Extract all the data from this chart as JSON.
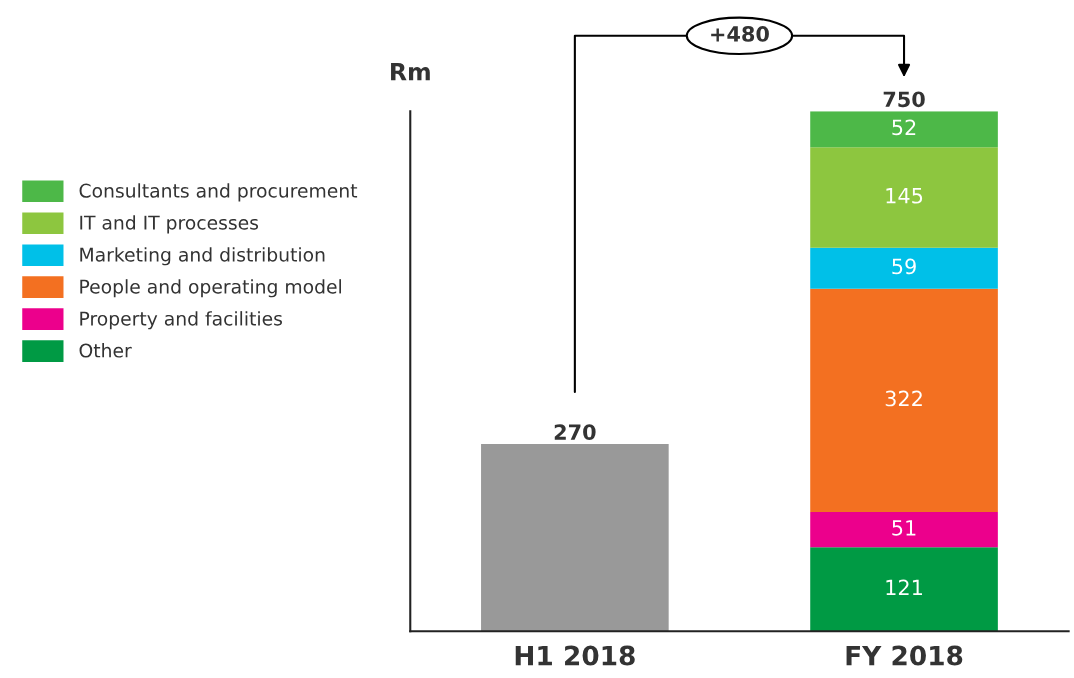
{
  "chart_data": {
    "type": "bar",
    "stacked": true,
    "ylabel": "Rm",
    "categories": [
      "H1 2018",
      "FY 2018"
    ],
    "ylim": [
      0,
      750
    ],
    "legend": "left",
    "grid": false,
    "totals": [
      "270",
      "750"
    ],
    "annotations": [
      "+480"
    ],
    "series": [
      {
        "color": "#999999",
        "values": [
          270,
          null
        ]
      },
      {
        "name": "Other",
        "color": "#009a44",
        "values": [
          null,
          121
        ],
        "value_labels": [
          null,
          "121"
        ]
      },
      {
        "name": "Property and facilities",
        "color": "#ec008c",
        "values": [
          null,
          51
        ],
        "value_labels": [
          null,
          "51"
        ]
      },
      {
        "name": "People and operating model",
        "color": "#f37021",
        "values": [
          null,
          322
        ],
        "value_labels": [
          null,
          "322"
        ]
      },
      {
        "name": "Marketing and distribution",
        "color": "#00c0e8",
        "values": [
          null,
          59
        ],
        "value_labels": [
          null,
          "59"
        ]
      },
      {
        "name": "IT and IT processes",
        "color": "#8dc63f",
        "values": [
          null,
          145
        ],
        "value_labels": [
          null,
          "145"
        ]
      },
      {
        "name": "Consultants and procurement",
        "color": "#4db848",
        "values": [
          null,
          52
        ],
        "value_labels": [
          null,
          "52"
        ]
      }
    ]
  }
}
